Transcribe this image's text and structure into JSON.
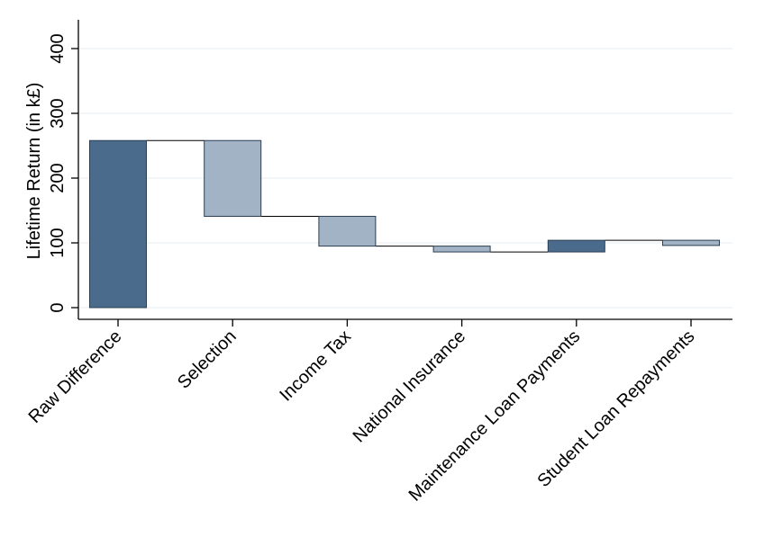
{
  "chart_data": {
    "type": "bar",
    "subtype": "waterfall",
    "title": "",
    "xlabel": "",
    "ylabel": "Lifetime Return (in k£)",
    "ylim": [
      0,
      430
    ],
    "yticks": [
      0,
      100,
      200,
      300,
      400
    ],
    "grid": true,
    "categories": [
      "Raw Difference",
      "Selection",
      "Income Tax",
      "National Insurance",
      "Maintenance Loan Payments",
      "Student Loan Repayments"
    ],
    "bars": [
      {
        "category": "Raw Difference",
        "start": 0,
        "end": 258,
        "kind": "increase"
      },
      {
        "category": "Selection",
        "start": 258,
        "end": 141,
        "kind": "decrease"
      },
      {
        "category": "Income Tax",
        "start": 141,
        "end": 95,
        "kind": "decrease"
      },
      {
        "category": "National Insurance",
        "start": 95,
        "end": 86,
        "kind": "decrease"
      },
      {
        "category": "Maintenance Loan Payments",
        "start": 86,
        "end": 104,
        "kind": "increase"
      },
      {
        "category": "Student Loan Repayments",
        "start": 104,
        "end": 96,
        "kind": "decrease"
      }
    ],
    "colors": {
      "increase": "#4a6b8c",
      "decrease": "#a3b3c6",
      "grid": "#e6ecf0"
    }
  }
}
